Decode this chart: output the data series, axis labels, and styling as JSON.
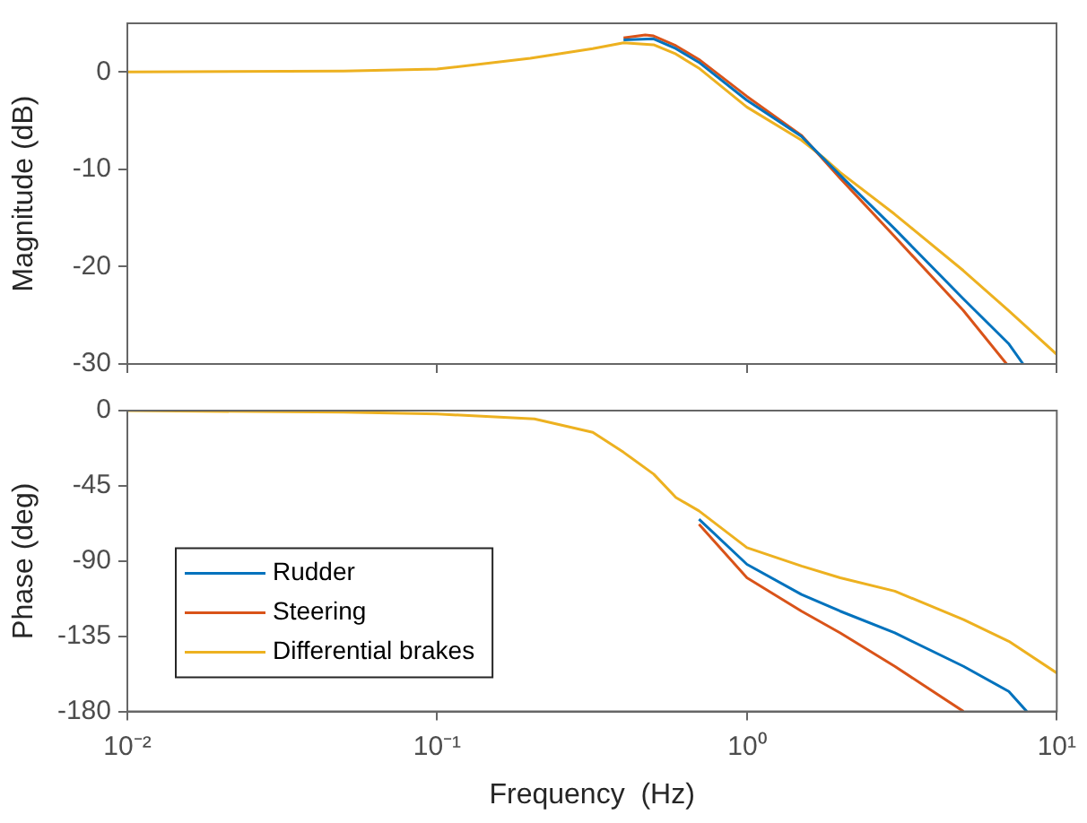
{
  "chart_data": [
    {
      "type": "line",
      "ylabel": "Magnitude (dB)",
      "xlim": [
        0.01,
        10
      ],
      "xticks": [
        {
          "value": 0.01,
          "label": null
        },
        {
          "value": 0.1,
          "label": null
        },
        {
          "value": 1,
          "label": null
        },
        {
          "value": 10,
          "label": null
        }
      ],
      "ylim": [
        -30,
        5
      ],
      "yticks": [
        -30,
        -20,
        -10,
        0
      ],
      "log": "x",
      "tick_labels": "y",
      "series": [
        {
          "color": "#0072bd",
          "x": [
            0.4,
            0.5,
            0.59,
            0.7,
            1,
            1.5,
            2,
            3,
            5,
            7,
            7.8
          ],
          "values": [
            3.3,
            3.4,
            2.4,
            1.0,
            -2.9,
            -6.6,
            -10.6,
            -16.1,
            -23.3,
            -27.9,
            -30
          ]
        },
        {
          "color": "#d95319",
          "x": [
            0.4,
            0.47,
            0.5,
            0.59,
            0.7,
            1,
            1.5,
            2,
            3,
            5,
            6.9
          ],
          "values": [
            3.5,
            3.8,
            3.7,
            2.7,
            1.3,
            -2.5,
            -6.5,
            -10.9,
            -16.9,
            -24.5,
            -30
          ]
        },
        {
          "color": "#edb120",
          "x": [
            0.01,
            0.05,
            0.1,
            0.2,
            0.318,
            0.4,
            0.5,
            0.59,
            0.7,
            1,
            1.5,
            1.77,
            2,
            3,
            5,
            7,
            10
          ],
          "values": [
            0,
            0.1,
            0.3,
            1.4,
            2.4,
            3.0,
            2.8,
            1.85,
            0.4,
            -3.6,
            -7.0,
            -8.8,
            -10.3,
            -14.6,
            -20.4,
            -24.5,
            -29
          ]
        }
      ]
    },
    {
      "type": "line",
      "xlabel": "Frequency  (Hz)",
      "ylabel": "Phase (deg)",
      "xlim": [
        0.01,
        10
      ],
      "xticks": [
        {
          "value": 0.01,
          "label": "10⁻²"
        },
        {
          "value": 0.1,
          "label": "10⁻¹"
        },
        {
          "value": 1,
          "label": "10⁰"
        },
        {
          "value": 10,
          "label": "10¹"
        }
      ],
      "ylim": [
        -180,
        0
      ],
      "yticks": [
        -180,
        -135,
        -90,
        -45,
        0
      ],
      "log": "x",
      "legend": "bottom left",
      "series": [
        {
          "name": "Rudder",
          "color": "#0072bd",
          "x": [
            0.7,
            1,
            1.5,
            2,
            3,
            5,
            7,
            8
          ],
          "values": [
            -65,
            -92,
            -110,
            -120,
            -133,
            -153,
            -168,
            -180
          ]
        },
        {
          "name": "Steering",
          "color": "#d95319",
          "x": [
            0.7,
            1,
            1.5,
            2,
            3,
            5
          ],
          "values": [
            -68,
            -100,
            -120,
            -133,
            -153,
            -180
          ]
        },
        {
          "name": "Differential brakes",
          "color": "#edb120",
          "x": [
            0.01,
            0.05,
            0.1,
            0.206,
            0.318,
            0.4,
            0.5,
            0.59,
            0.7,
            1,
            1.5,
            2,
            3,
            5,
            7,
            10
          ],
          "values": [
            0,
            -1,
            -2,
            -5,
            -13,
            -25,
            -38,
            -52,
            -60,
            -82,
            -93,
            -100,
            -108,
            -125,
            -138,
            -157
          ]
        }
      ]
    }
  ]
}
